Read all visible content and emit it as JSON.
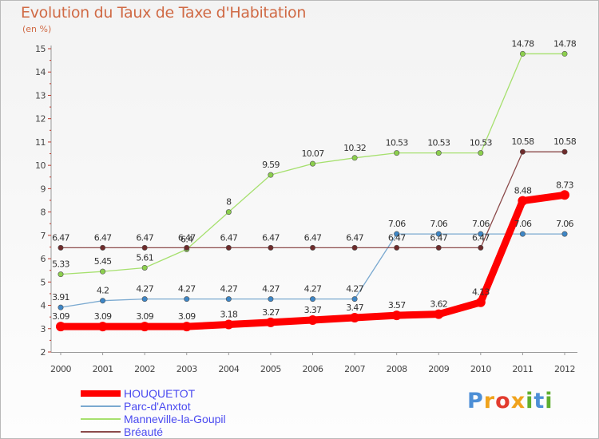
{
  "title": "Evolution du Taux de Taxe d'Habitation",
  "unit_label": "(en %)",
  "logo": {
    "letters": [
      {
        "ch": "P",
        "color": "#4d8fd6"
      },
      {
        "ch": "r",
        "color": "#f0a31c"
      },
      {
        "ch": "o",
        "color": "#e23b2e"
      },
      {
        "ch": "x",
        "color": "#f0a31c"
      },
      {
        "ch": "i",
        "color": "#5fae2e"
      },
      {
        "ch": "t",
        "color": "#4d8fd6"
      },
      {
        "ch": "i",
        "color": "#5fae2e"
      }
    ]
  },
  "chart_data": {
    "type": "line",
    "title": "Evolution du Taux de Taxe d'Habitation",
    "ylabel": "(en %)",
    "xlabel": "",
    "categories": [
      "2000",
      "2001",
      "2002",
      "2003",
      "2004",
      "2005",
      "2006",
      "2007",
      "2008",
      "2009",
      "2010",
      "2011",
      "2012"
    ],
    "ylim": [
      2,
      15
    ],
    "yticks": [
      2,
      3,
      4,
      5,
      6,
      7,
      8,
      9,
      10,
      11,
      12,
      13,
      14,
      15
    ],
    "grid": false,
    "legend_position": "bottom-left",
    "series": [
      {
        "name": "HOUQUETOT",
        "color": "#ff0000",
        "marker_color": "#ff0000",
        "width": "thick",
        "values": [
          3.09,
          3.09,
          3.09,
          3.09,
          3.18,
          3.27,
          3.37,
          3.47,
          3.57,
          3.62,
          4.13,
          8.48,
          8.73
        ],
        "labels": [
          "3.09",
          "3.09",
          "3.09",
          "3.09",
          "3.18",
          "3.27",
          "3.37",
          "3.47",
          "3.57",
          "3.62",
          "4.13",
          "8.48",
          "8.73"
        ]
      },
      {
        "name": "Parc-d'Anxtot",
        "color": "#7aa9d0",
        "marker_color": "#3d86c6",
        "width": "thin",
        "values": [
          3.91,
          4.2,
          4.27,
          4.27,
          4.27,
          4.27,
          4.27,
          4.27,
          7.06,
          7.06,
          7.06,
          7.06,
          7.06
        ],
        "labels": [
          "3.91",
          "4.2",
          "4.27",
          "4.27",
          "4.27",
          "4.27",
          "4.27",
          "4.27",
          "7.06",
          "7.06",
          "7.06",
          "7.06",
          "7.06"
        ]
      },
      {
        "name": "Manneville-la-Goupil",
        "color": "#a6e06e",
        "marker_color": "#8ccf4d",
        "width": "thin",
        "values": [
          5.33,
          5.45,
          5.61,
          6.4,
          8,
          9.59,
          10.07,
          10.32,
          10.53,
          10.53,
          10.53,
          14.78,
          14.78
        ],
        "labels": [
          "5.33",
          "5.45",
          "5.61",
          "6.4",
          "8",
          "9.59",
          "10.07",
          "10.32",
          "10.53",
          "10.53",
          "10.53",
          "14.78",
          "14.78"
        ]
      },
      {
        "name": "Bréauté",
        "color": "#8b4a4a",
        "marker_color": "#6e2b2b",
        "width": "thin",
        "values": [
          6.47,
          6.47,
          6.47,
          6.47,
          6.47,
          6.47,
          6.47,
          6.47,
          6.47,
          6.47,
          6.47,
          10.58,
          10.58
        ],
        "labels": [
          "6.47",
          "6.47",
          "6.47",
          "6.47",
          "6.47",
          "6.47",
          "6.47",
          "6.47",
          "6.47",
          "6.47",
          "6.47",
          "10.58",
          "10.58"
        ]
      }
    ],
    "legend_label_colors": [
      "#4a4af0",
      "#4a4af0",
      "#4a4af0",
      "#4a4af0"
    ]
  }
}
